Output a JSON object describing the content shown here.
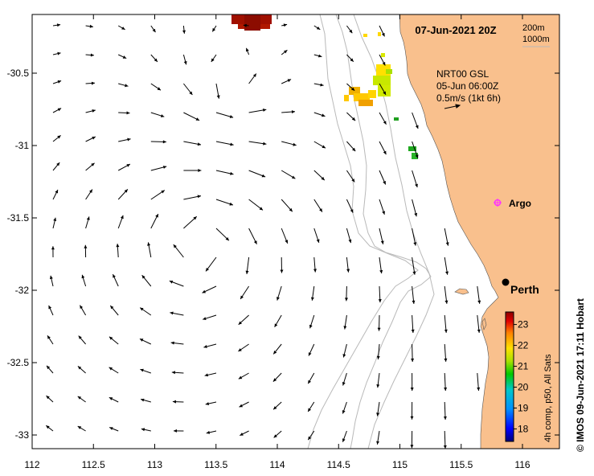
{
  "map": {
    "date_title": "07-Jun-2021 20Z",
    "isobath_labels": [
      "200m",
      "1000m"
    ],
    "current_product": "NRT00 GSL",
    "current_date": "05-Jun 06:00Z",
    "vector_scale_label": "0.5m/s (1kt 6h)",
    "argo_label": "Argo",
    "city_label": "Perth",
    "colorbar_title": "4h comp, p50, All Sats",
    "colorbar_ticks": [
      "23",
      "22",
      "21",
      "20",
      "19",
      "18"
    ],
    "colorbar_range": [
      17.4,
      23.6
    ],
    "credit": "© IMOS 09-Jun-2021 17:11 Hobart",
    "lon_ticks": [
      "112",
      "112.5",
      "113",
      "113.5",
      "114",
      "114.5",
      "115",
      "115.5",
      "116"
    ],
    "lat_ticks": [
      "-30.5",
      "-31",
      "-31.5",
      "-32",
      "-32.5",
      "-33"
    ],
    "colors": {
      "land": "#f9c08d",
      "isobath": "#b9b9b9",
      "argo": "#ff33ff",
      "sst_warm": "#a01000",
      "sst_mid": "#ffd800",
      "sst_cool": "#1a8a1a"
    }
  }
}
